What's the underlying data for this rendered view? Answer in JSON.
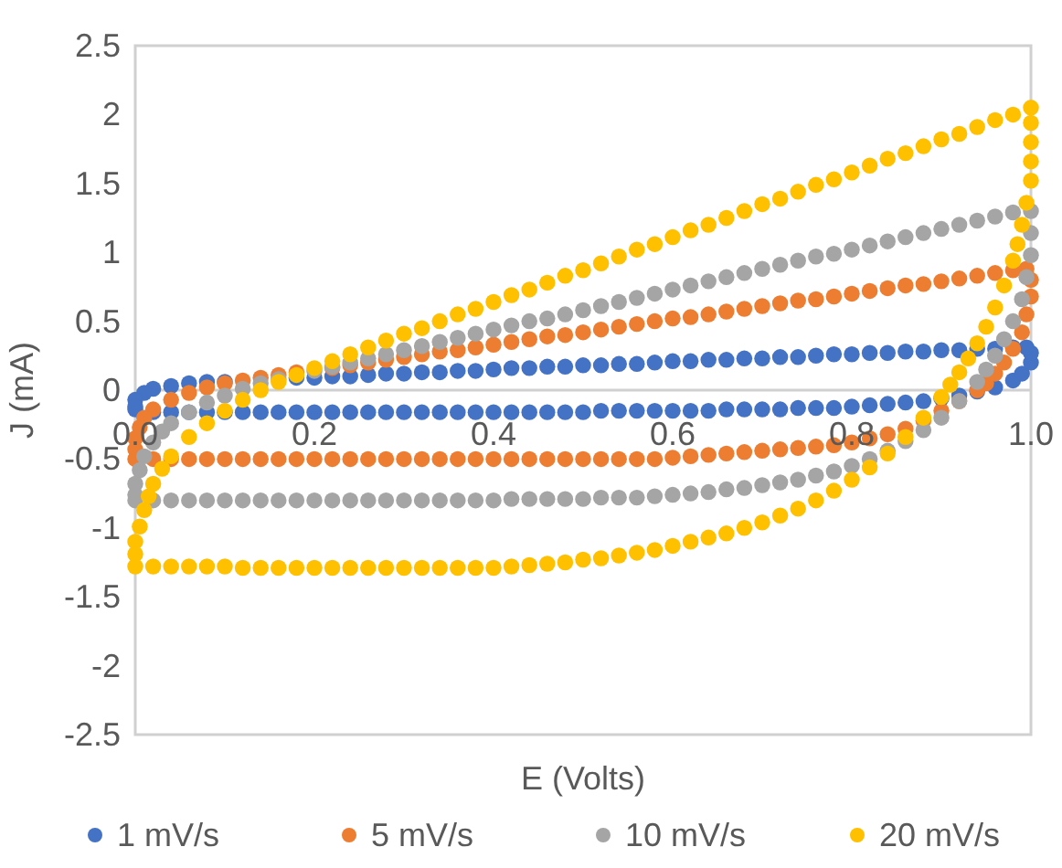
{
  "chart_data": {
    "type": "scatter",
    "xlabel": "E (Volts)",
    "ylabel": "J (mA)",
    "xlim": [
      0,
      1
    ],
    "xticks": [
      {
        "value": 0,
        "label": "0.0"
      },
      {
        "value": 0.2,
        "label": "0.2"
      },
      {
        "value": 0.4,
        "label": "0.4"
      },
      {
        "value": 0.6,
        "label": "0.6"
      },
      {
        "value": 0.8,
        "label": "0.8"
      },
      {
        "value": 1,
        "label": "1.0"
      }
    ],
    "ylim": [
      -2.5,
      2.5
    ],
    "yticks": [
      -2.5,
      -2,
      -1.5,
      -1,
      -0.5,
      0,
      0.5,
      1,
      1.5,
      2,
      2.5
    ],
    "grid": false,
    "legend": "bottom",
    "marker": "circle",
    "series": [
      {
        "name": "1 mV/s",
        "color": "#4472c4",
        "x": [
          0,
          0.02,
          0.04,
          0.06,
          0.08,
          0.1,
          0.12,
          0.14,
          0.16,
          0.18,
          0.2,
          0.22,
          0.24,
          0.26,
          0.28,
          0.3,
          0.32,
          0.34,
          0.36,
          0.38,
          0.4,
          0.42,
          0.44,
          0.46,
          0.48,
          0.5,
          0.52,
          0.54,
          0.56,
          0.58,
          0.6,
          0.62,
          0.64,
          0.66,
          0.68,
          0.7,
          0.72,
          0.74,
          0.76,
          0.78,
          0.8,
          0.82,
          0.84,
          0.86,
          0.88,
          0.9,
          0.92,
          0.94,
          0.96,
          0.98,
          0.99,
          1,
          1,
          0.995,
          0.98,
          0.96,
          0.94,
          0.92,
          0.9,
          0.88,
          0.86,
          0.84,
          0.82,
          0.8,
          0.78,
          0.76,
          0.74,
          0.72,
          0.7,
          0.68,
          0.66,
          0.64,
          0.62,
          0.6,
          0.58,
          0.56,
          0.54,
          0.52,
          0.5,
          0.48,
          0.46,
          0.44,
          0.42,
          0.4,
          0.38,
          0.36,
          0.34,
          0.32,
          0.3,
          0.28,
          0.26,
          0.24,
          0.22,
          0.2,
          0.18,
          0.1,
          0.08,
          0.06,
          0.04,
          0.02,
          0.01,
          0,
          0
        ],
        "values": [
          -0.14,
          -0.16,
          -0.16,
          -0.16,
          -0.16,
          -0.16,
          -0.16,
          -0.16,
          -0.16,
          -0.16,
          -0.16,
          -0.16,
          -0.16,
          -0.16,
          -0.16,
          -0.16,
          -0.16,
          -0.16,
          -0.16,
          -0.16,
          -0.16,
          -0.16,
          -0.16,
          -0.16,
          -0.16,
          -0.16,
          -0.15,
          -0.15,
          -0.15,
          -0.15,
          -0.15,
          -0.15,
          -0.15,
          -0.14,
          -0.14,
          -0.14,
          -0.14,
          -0.13,
          -0.13,
          -0.13,
          -0.12,
          -0.11,
          -0.1,
          -0.09,
          -0.08,
          -0.06,
          -0.04,
          -0.01,
          0.02,
          0.07,
          0.12,
          0.2,
          0.27,
          0.31,
          0.31,
          0.3,
          0.3,
          0.29,
          0.29,
          0.28,
          0.28,
          0.27,
          0.27,
          0.26,
          0.26,
          0.25,
          0.24,
          0.24,
          0.23,
          0.23,
          0.22,
          0.22,
          0.21,
          0.21,
          0.2,
          0.19,
          0.19,
          0.18,
          0.18,
          0.17,
          0.17,
          0.16,
          0.16,
          0.15,
          0.14,
          0.14,
          0.13,
          0.13,
          0.12,
          0.12,
          0.11,
          0.1,
          0.1,
          0.09,
          0.09,
          0.06,
          0.06,
          0.05,
          0.03,
          0.01,
          -0.02,
          -0.07,
          -0.12
        ]
      },
      {
        "name": "5 mV/s",
        "color": "#ed7d31",
        "x": [
          0,
          0.02,
          0.04,
          0.06,
          0.08,
          0.1,
          0.12,
          0.14,
          0.16,
          0.18,
          0.2,
          0.22,
          0.24,
          0.26,
          0.28,
          0.3,
          0.32,
          0.34,
          0.36,
          0.38,
          0.4,
          0.42,
          0.44,
          0.46,
          0.48,
          0.5,
          0.52,
          0.54,
          0.56,
          0.58,
          0.6,
          0.62,
          0.64,
          0.66,
          0.68,
          0.7,
          0.72,
          0.74,
          0.76,
          0.78,
          0.8,
          0.82,
          0.84,
          0.86,
          0.88,
          0.9,
          0.92,
          0.94,
          0.95,
          0.96,
          0.97,
          0.98,
          0.99,
          0.995,
          1,
          1,
          0.995,
          0.98,
          0.96,
          0.94,
          0.92,
          0.9,
          0.88,
          0.86,
          0.84,
          0.82,
          0.8,
          0.78,
          0.76,
          0.74,
          0.72,
          0.7,
          0.68,
          0.66,
          0.64,
          0.62,
          0.6,
          0.58,
          0.56,
          0.54,
          0.52,
          0.5,
          0.48,
          0.46,
          0.44,
          0.42,
          0.4,
          0.38,
          0.36,
          0.34,
          0.32,
          0.3,
          0.28,
          0.26,
          0.24,
          0.22,
          0.18,
          0.16,
          0.14,
          0.12,
          0.1,
          0.08,
          0.06,
          0.04,
          0.02,
          0.01,
          0.005,
          0,
          0
        ],
        "values": [
          -0.5,
          -0.5,
          -0.5,
          -0.5,
          -0.5,
          -0.5,
          -0.5,
          -0.5,
          -0.5,
          -0.5,
          -0.5,
          -0.5,
          -0.5,
          -0.5,
          -0.5,
          -0.5,
          -0.5,
          -0.5,
          -0.5,
          -0.5,
          -0.5,
          -0.5,
          -0.5,
          -0.5,
          -0.5,
          -0.5,
          -0.5,
          -0.5,
          -0.5,
          -0.5,
          -0.49,
          -0.48,
          -0.47,
          -0.46,
          -0.45,
          -0.44,
          -0.43,
          -0.42,
          -0.41,
          -0.4,
          -0.38,
          -0.35,
          -0.32,
          -0.28,
          -0.22,
          -0.15,
          -0.08,
          0,
          0.05,
          0.12,
          0.2,
          0.3,
          0.42,
          0.55,
          0.68,
          0.8,
          0.88,
          0.87,
          0.85,
          0.83,
          0.81,
          0.79,
          0.77,
          0.76,
          0.74,
          0.72,
          0.7,
          0.68,
          0.66,
          0.65,
          0.63,
          0.61,
          0.59,
          0.57,
          0.55,
          0.53,
          0.52,
          0.5,
          0.48,
          0.46,
          0.44,
          0.42,
          0.4,
          0.39,
          0.37,
          0.35,
          0.33,
          0.31,
          0.29,
          0.28,
          0.26,
          0.24,
          0.22,
          0.2,
          0.18,
          0.16,
          0.13,
          0.11,
          0.09,
          0.07,
          0.05,
          0.02,
          -0.02,
          -0.07,
          -0.14,
          -0.2,
          -0.27,
          -0.35,
          -0.43
        ]
      },
      {
        "name": "10 mV/s",
        "color": "#a5a5a5",
        "x": [
          0,
          0.02,
          0.04,
          0.06,
          0.08,
          0.1,
          0.12,
          0.14,
          0.16,
          0.18,
          0.2,
          0.22,
          0.24,
          0.26,
          0.28,
          0.3,
          0.32,
          0.34,
          0.36,
          0.38,
          0.4,
          0.42,
          0.44,
          0.46,
          0.48,
          0.5,
          0.52,
          0.54,
          0.56,
          0.58,
          0.6,
          0.62,
          0.64,
          0.66,
          0.68,
          0.7,
          0.72,
          0.74,
          0.76,
          0.78,
          0.8,
          0.82,
          0.84,
          0.86,
          0.88,
          0.9,
          0.92,
          0.94,
          0.95,
          0.96,
          0.97,
          0.98,
          0.99,
          0.995,
          1,
          1,
          1,
          0.98,
          0.96,
          0.94,
          0.92,
          0.9,
          0.88,
          0.86,
          0.84,
          0.82,
          0.8,
          0.78,
          0.76,
          0.74,
          0.72,
          0.7,
          0.68,
          0.66,
          0.64,
          0.62,
          0.6,
          0.58,
          0.56,
          0.54,
          0.52,
          0.5,
          0.48,
          0.46,
          0.44,
          0.42,
          0.4,
          0.38,
          0.36,
          0.34,
          0.32,
          0.3,
          0.28,
          0.26,
          0.24,
          0.22,
          0.2,
          0.16,
          0.14,
          0.12,
          0.1,
          0.08,
          0.06,
          0.04,
          0.03,
          0.02,
          0.01,
          0.005,
          0,
          0
        ],
        "values": [
          -0.8,
          -0.8,
          -0.8,
          -0.8,
          -0.8,
          -0.8,
          -0.8,
          -0.8,
          -0.8,
          -0.8,
          -0.8,
          -0.8,
          -0.8,
          -0.8,
          -0.8,
          -0.8,
          -0.8,
          -0.8,
          -0.8,
          -0.8,
          -0.8,
          -0.79,
          -0.79,
          -0.79,
          -0.79,
          -0.79,
          -0.78,
          -0.78,
          -0.78,
          -0.77,
          -0.76,
          -0.75,
          -0.74,
          -0.72,
          -0.71,
          -0.69,
          -0.67,
          -0.65,
          -0.62,
          -0.59,
          -0.55,
          -0.5,
          -0.44,
          -0.37,
          -0.29,
          -0.2,
          -0.08,
          0.06,
          0.15,
          0.25,
          0.37,
          0.5,
          0.66,
          0.82,
          0.98,
          1.14,
          1.3,
          1.29,
          1.26,
          1.23,
          1.2,
          1.17,
          1.14,
          1.11,
          1.08,
          1.05,
          1.02,
          0.99,
          0.97,
          0.94,
          0.91,
          0.88,
          0.85,
          0.82,
          0.79,
          0.76,
          0.73,
          0.7,
          0.67,
          0.64,
          0.61,
          0.58,
          0.55,
          0.52,
          0.5,
          0.47,
          0.44,
          0.41,
          0.38,
          0.35,
          0.32,
          0.29,
          0.26,
          0.23,
          0.2,
          0.17,
          0.14,
          0.08,
          0.05,
          0.01,
          -0.04,
          -0.09,
          -0.16,
          -0.24,
          -0.3,
          -0.38,
          -0.48,
          -0.58,
          -0.68,
          -0.76
        ]
      },
      {
        "name": "20 mV/s",
        "color": "#ffc000",
        "x": [
          0,
          0.02,
          0.04,
          0.06,
          0.08,
          0.1,
          0.12,
          0.14,
          0.16,
          0.18,
          0.2,
          0.22,
          0.24,
          0.26,
          0.28,
          0.3,
          0.32,
          0.34,
          0.36,
          0.38,
          0.4,
          0.42,
          0.44,
          0.46,
          0.48,
          0.5,
          0.52,
          0.54,
          0.56,
          0.58,
          0.6,
          0.62,
          0.64,
          0.66,
          0.68,
          0.7,
          0.72,
          0.74,
          0.76,
          0.78,
          0.8,
          0.82,
          0.84,
          0.86,
          0.88,
          0.9,
          0.91,
          0.92,
          0.93,
          0.94,
          0.95,
          0.96,
          0.97,
          0.98,
          0.985,
          0.99,
          0.995,
          1,
          1,
          1,
          1,
          1,
          0.98,
          0.96,
          0.94,
          0.92,
          0.9,
          0.88,
          0.86,
          0.84,
          0.82,
          0.8,
          0.78,
          0.76,
          0.74,
          0.72,
          0.7,
          0.68,
          0.66,
          0.64,
          0.62,
          0.6,
          0.58,
          0.56,
          0.54,
          0.52,
          0.5,
          0.48,
          0.46,
          0.44,
          0.42,
          0.4,
          0.38,
          0.36,
          0.34,
          0.32,
          0.3,
          0.28,
          0.26,
          0.24,
          0.22,
          0.2,
          0.18,
          0.16,
          0.14,
          0.12,
          0.1,
          0.08,
          0.06,
          0.04,
          0.03,
          0.02,
          0.015,
          0.01,
          0.005,
          0,
          0
        ],
        "values": [
          -1.28,
          -1.28,
          -1.28,
          -1.28,
          -1.28,
          -1.28,
          -1.29,
          -1.29,
          -1.29,
          -1.29,
          -1.29,
          -1.29,
          -1.29,
          -1.29,
          -1.29,
          -1.29,
          -1.29,
          -1.29,
          -1.29,
          -1.29,
          -1.29,
          -1.28,
          -1.27,
          -1.26,
          -1.25,
          -1.23,
          -1.22,
          -1.2,
          -1.18,
          -1.16,
          -1.13,
          -1.1,
          -1.07,
          -1.04,
          -1,
          -0.96,
          -0.91,
          -0.86,
          -0.8,
          -0.73,
          -0.65,
          -0.56,
          -0.46,
          -0.34,
          -0.2,
          -0.05,
          0.04,
          0.13,
          0.23,
          0.34,
          0.46,
          0.6,
          0.76,
          0.94,
          1.06,
          1.2,
          1.36,
          1.52,
          1.66,
          1.8,
          1.94,
          2.05,
          2,
          1.96,
          1.91,
          1.86,
          1.82,
          1.77,
          1.72,
          1.68,
          1.63,
          1.58,
          1.53,
          1.49,
          1.44,
          1.39,
          1.35,
          1.3,
          1.25,
          1.2,
          1.16,
          1.11,
          1.06,
          1.02,
          0.97,
          0.92,
          0.87,
          0.83,
          0.78,
          0.73,
          0.69,
          0.64,
          0.59,
          0.55,
          0.5,
          0.45,
          0.41,
          0.36,
          0.31,
          0.26,
          0.21,
          0.16,
          0.11,
          0.06,
          0,
          -0.07,
          -0.15,
          -0.24,
          -0.34,
          -0.48,
          -0.57,
          -0.68,
          -0.77,
          -0.87,
          -0.99,
          -1.1,
          -1.19
        ]
      }
    ]
  }
}
